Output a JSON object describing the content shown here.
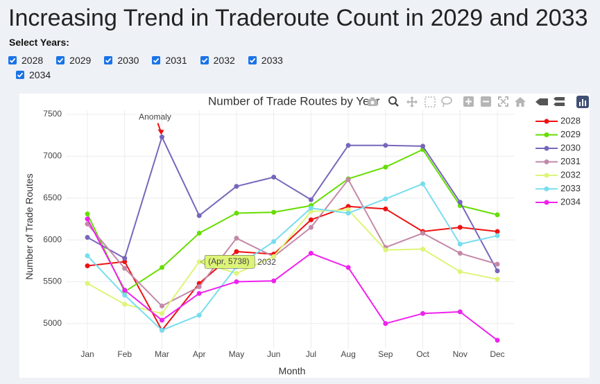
{
  "page": {
    "title": "Increasing Trend in Traderoute Count in 2029 and 2033",
    "select_label": "Select Years:",
    "years": [
      "2028",
      "2029",
      "2030",
      "2031",
      "2032",
      "2033",
      "2034"
    ]
  },
  "chart_data": {
    "type": "line",
    "title": "Number of Trade Routes by Year",
    "xlabel": "Month",
    "ylabel": "Number of Trade Routes",
    "categories": [
      "Jan",
      "Feb",
      "Mar",
      "Apr",
      "May",
      "Jun",
      "Jul",
      "Aug",
      "Sep",
      "Oct",
      "Nov",
      "Dec"
    ],
    "ylim": [
      4700,
      7550
    ],
    "yticks": [
      5000,
      5500,
      6000,
      6500,
      7000,
      7500
    ],
    "grid": true,
    "legend": "right",
    "series": [
      {
        "name": "2028",
        "color": "#ee1111",
        "values": [
          5690,
          5740,
          4920,
          5480,
          5860,
          5830,
          6240,
          6400,
          6370,
          6100,
          6150,
          6100
        ]
      },
      {
        "name": "2029",
        "color": "#66dd00",
        "values": [
          6310,
          5380,
          5670,
          6080,
          6320,
          6330,
          6410,
          6730,
          6870,
          7080,
          6410,
          6300
        ]
      },
      {
        "name": "2030",
        "color": "#7766bb",
        "values": [
          6030,
          5780,
          7230,
          6290,
          6640,
          6750,
          6480,
          7130,
          7130,
          7120,
          6450,
          5630
        ]
      },
      {
        "name": "2031",
        "color": "#c388a8",
        "values": [
          6190,
          5660,
          5210,
          5440,
          6020,
          5800,
          6150,
          6720,
          5910,
          6080,
          5840,
          5710
        ]
      },
      {
        "name": "2032",
        "color": "#ddf577",
        "values": [
          5480,
          5230,
          5120,
          5738,
          5600,
          5800,
          6340,
          6360,
          5880,
          5890,
          5620,
          5530
        ]
      },
      {
        "name": "2033",
        "color": "#77ddee",
        "values": [
          5810,
          5340,
          4920,
          5100,
          5680,
          5980,
          6380,
          6320,
          6490,
          6670,
          5950,
          6050
        ]
      },
      {
        "name": "2034",
        "color": "#ee22ee",
        "values": [
          6250,
          5400,
          5040,
          5360,
          5500,
          5510,
          5840,
          5670,
          5000,
          5120,
          5140,
          4800
        ]
      }
    ],
    "annotation": {
      "text": "Anomaly",
      "x": "Mar",
      "y": 7230
    },
    "hover": {
      "text": "(Apr, 5738)",
      "series": "2032",
      "x": "Apr",
      "y": 5738,
      "trail_text": "2032"
    }
  }
}
